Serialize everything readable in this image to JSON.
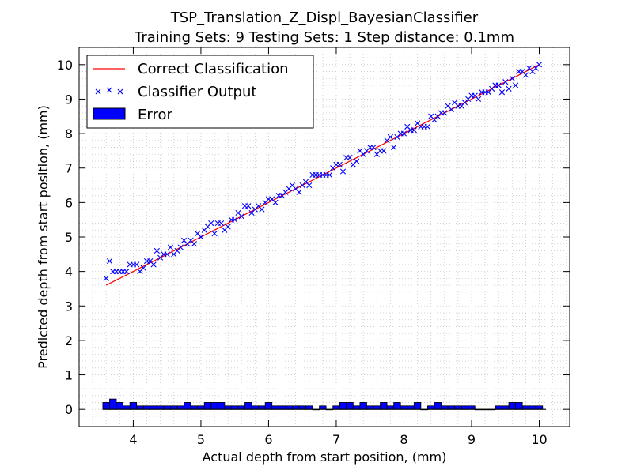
{
  "chart_data": {
    "type": "scatter",
    "title_line1": "TSP_Translation_Z_Displ_BayesianClassifier",
    "title_line2": "Training Sets: 9    Testing Sets: 1    Step distance: 0.1mm",
    "xlabel": "Actual depth from start position, (mm)",
    "ylabel": "Predicted depth from start position, (mm)",
    "xlim": [
      3.2,
      10.45
    ],
    "ylim": [
      -0.5,
      10.5
    ],
    "xticks": [
      "4",
      "5",
      "6",
      "7",
      "8",
      "9",
      "10"
    ],
    "yticks": [
      "0",
      "1",
      "2",
      "3",
      "4",
      "5",
      "6",
      "7",
      "8",
      "9",
      "10"
    ],
    "grid": true,
    "legend_position": "upper-left",
    "colors": {
      "line": "#ff0000",
      "markers": "#0000ff",
      "bars": "#0000ff"
    },
    "series": [
      {
        "name": "Correct Classification",
        "kind": "line",
        "x": [
          3.6,
          10.0
        ],
        "y": [
          3.6,
          10.0
        ]
      },
      {
        "name": "Classifier Output",
        "kind": "scatter",
        "x": [
          3.6,
          3.7,
          3.8,
          3.9,
          4.0,
          4.1,
          4.2,
          4.3,
          4.4,
          4.5,
          4.6,
          4.7,
          4.8,
          4.9,
          5.0,
          5.1,
          5.2,
          5.3,
          5.4,
          5.5,
          5.6,
          5.7,
          5.8,
          5.9,
          6.0,
          6.1,
          6.2,
          6.3,
          6.4,
          6.5,
          6.6,
          6.7,
          6.8,
          6.9,
          7.0,
          7.1,
          7.2,
          7.3,
          7.4,
          7.5,
          7.6,
          7.7,
          7.8,
          7.9,
          8.0,
          8.1,
          8.2,
          8.3,
          8.4,
          8.5,
          8.6,
          8.7,
          8.8,
          8.9,
          9.0,
          9.1,
          9.2,
          9.3,
          9.4,
          9.5,
          9.6,
          9.7,
          9.8,
          9.9,
          10.0,
          3.65,
          3.75,
          3.85,
          3.95,
          4.05,
          4.15,
          4.25,
          4.35,
          4.45,
          4.55,
          4.65,
          4.75,
          4.85,
          4.95,
          5.05,
          5.15,
          5.25,
          5.35,
          5.45,
          5.55,
          5.65,
          5.75,
          5.85,
          5.95,
          6.05,
          6.15,
          6.25,
          6.35,
          6.45,
          6.55,
          6.65,
          6.75,
          6.85,
          6.95,
          7.05,
          7.15,
          7.25,
          7.35,
          7.45,
          7.55,
          7.65,
          7.75,
          7.85,
          7.95,
          8.05,
          8.15,
          8.25,
          8.35,
          8.45,
          8.55,
          8.65,
          8.75,
          8.85,
          8.95,
          9.05,
          9.15,
          9.25,
          9.35,
          9.45,
          9.55,
          9.65,
          9.75,
          9.85,
          9.95
        ],
        "y": [
          3.8,
          4.0,
          4.0,
          4.0,
          4.2,
          4.0,
          4.3,
          4.2,
          4.4,
          4.5,
          4.5,
          4.7,
          4.8,
          4.8,
          5.0,
          5.3,
          5.1,
          5.4,
          5.3,
          5.5,
          5.6,
          5.9,
          5.8,
          5.8,
          6.1,
          6.0,
          6.2,
          6.4,
          6.4,
          6.5,
          6.5,
          6.8,
          6.8,
          6.8,
          7.1,
          6.9,
          7.3,
          7.2,
          7.4,
          7.6,
          7.4,
          7.5,
          7.9,
          7.9,
          8.0,
          8.1,
          8.3,
          8.2,
          8.5,
          8.5,
          8.6,
          8.7,
          8.8,
          8.9,
          9.1,
          9.0,
          9.2,
          9.3,
          9.4,
          9.5,
          9.6,
          9.8,
          9.7,
          9.8,
          10.0,
          4.3,
          4.0,
          4.0,
          4.2,
          4.2,
          4.1,
          4.3,
          4.6,
          4.5,
          4.7,
          4.6,
          4.9,
          4.9,
          5.1,
          5.2,
          5.4,
          5.4,
          5.2,
          5.5,
          5.7,
          5.9,
          5.7,
          5.9,
          6.0,
          6.1,
          6.2,
          6.3,
          6.5,
          6.3,
          6.6,
          6.8,
          6.8,
          6.8,
          7.0,
          7.1,
          7.3,
          7.1,
          7.5,
          7.5,
          7.6,
          7.5,
          7.8,
          7.6,
          8.0,
          8.2,
          8.1,
          8.2,
          8.2,
          8.4,
          8.6,
          8.8,
          8.9,
          8.8,
          9.0,
          9.1,
          9.2,
          9.2,
          9.4,
          9.2,
          9.3,
          9.4,
          9.8,
          9.9,
          9.9
        ]
      },
      {
        "name": "Error",
        "kind": "bar",
        "bar_width": 0.1,
        "x": [
          3.6,
          3.7,
          3.8,
          3.9,
          4.0,
          4.1,
          4.2,
          4.3,
          4.4,
          4.5,
          4.6,
          4.7,
          4.8,
          4.9,
          5.0,
          5.1,
          5.2,
          5.3,
          5.4,
          5.5,
          5.6,
          5.7,
          5.8,
          5.9,
          6.0,
          6.1,
          6.2,
          6.3,
          6.4,
          6.5,
          6.6,
          6.7,
          6.8,
          6.9,
          7.0,
          7.1,
          7.2,
          7.3,
          7.4,
          7.5,
          7.6,
          7.7,
          7.8,
          7.9,
          8.0,
          8.1,
          8.2,
          8.3,
          8.4,
          8.5,
          8.6,
          8.7,
          8.8,
          8.9,
          9.0,
          9.1,
          9.2,
          9.3,
          9.4,
          9.5,
          9.6,
          9.7,
          9.8,
          9.9,
          10.0
        ],
        "values": [
          0.2,
          0.3,
          0.2,
          0.1,
          0.2,
          0.1,
          0.1,
          0.1,
          0.1,
          0.1,
          0.1,
          0.1,
          0.2,
          0.1,
          0.1,
          0.2,
          0.2,
          0.2,
          0.1,
          0.1,
          0.1,
          0.2,
          0.1,
          0.1,
          0.2,
          0.1,
          0.1,
          0.1,
          0.1,
          0.1,
          0.1,
          0.0,
          0.1,
          0.0,
          0.1,
          0.2,
          0.2,
          0.1,
          0.2,
          0.1,
          0.1,
          0.2,
          0.1,
          0.2,
          0.1,
          0.1,
          0.2,
          0.0,
          0.1,
          0.2,
          0.1,
          0.1,
          0.1,
          0.1,
          0.1,
          0.0,
          0.0,
          0.0,
          0.1,
          0.1,
          0.2,
          0.2,
          0.1,
          0.1,
          0.1
        ]
      }
    ]
  }
}
